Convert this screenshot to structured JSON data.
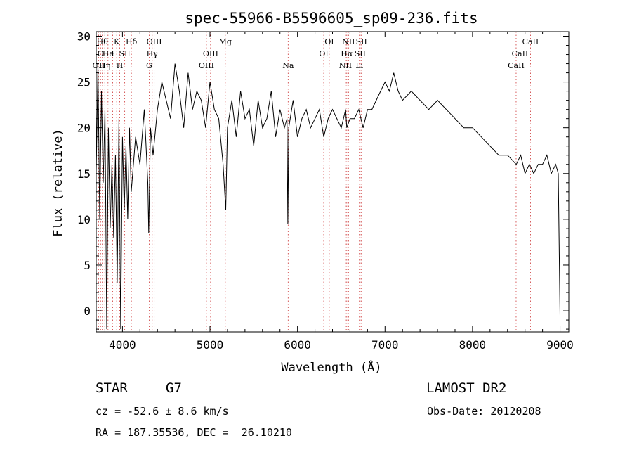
{
  "chart_data": {
    "type": "line",
    "title": "spec-55966-B5596605_sp09-236.fits",
    "xlabel": "Wavelength (Å)",
    "ylabel": "Flux (relative)",
    "xlim": [
      3700,
      9100
    ],
    "ylim": [
      -2.3,
      30.5
    ],
    "x_ticks": [
      4000,
      5000,
      6000,
      7000,
      8000,
      9000
    ],
    "y_ticks": [
      0,
      5,
      10,
      15,
      20,
      25,
      30
    ],
    "grid": false,
    "series": [
      {
        "x": [
          3700,
          3720,
          3740,
          3760,
          3780,
          3800,
          3820,
          3840,
          3860,
          3880,
          3900,
          3920,
          3940,
          3960,
          3980,
          4000,
          4020,
          4040,
          4060,
          4080,
          4100,
          4150,
          4200,
          4250,
          4290,
          4300,
          4320,
          4350,
          4400,
          4450,
          4500,
          4550,
          4600,
          4650,
          4700,
          4750,
          4800,
          4850,
          4900,
          4950,
          5000,
          5050,
          5100,
          5150,
          5180,
          5200,
          5250,
          5300,
          5350,
          5400,
          5450,
          5500,
          5550,
          5600,
          5650,
          5700,
          5750,
          5800,
          5850,
          5880,
          5890,
          5900,
          5950,
          6000,
          6050,
          6100,
          6150,
          6200,
          6250,
          6300,
          6350,
          6400,
          6450,
          6500,
          6550,
          6563,
          6600,
          6650,
          6700,
          6750,
          6800,
          6850,
          6900,
          6950,
          7000,
          7050,
          7100,
          7150,
          7200,
          7300,
          7400,
          7500,
          7600,
          7700,
          7800,
          7900,
          8000,
          8100,
          8200,
          8300,
          8400,
          8500,
          8550,
          8600,
          8650,
          8700,
          8750,
          8800,
          8850,
          8900,
          8950,
          8980,
          9000
        ],
        "y": [
          15,
          27,
          10,
          24,
          14,
          22,
          -2,
          20,
          9,
          16,
          8,
          17,
          3,
          21,
          -2,
          19,
          11,
          18,
          10,
          20,
          13,
          19,
          16,
          22,
          14,
          8.5,
          20,
          17,
          22,
          25,
          23,
          21,
          27,
          24,
          20,
          26,
          22,
          24,
          23,
          20,
          25,
          22,
          21,
          16,
          11,
          20,
          23,
          19,
          24,
          21,
          22,
          18,
          23,
          20,
          21,
          24,
          19,
          22,
          20,
          21,
          9.5,
          20,
          23,
          19,
          21,
          22,
          20,
          21,
          22,
          19,
          21,
          22,
          21,
          20,
          22,
          20,
          21,
          21,
          22,
          20,
          22,
          22,
          23,
          24,
          25,
          24,
          26,
          24,
          23,
          24,
          23,
          22,
          23,
          22,
          21,
          20,
          20,
          19,
          18,
          17,
          17,
          16,
          17,
          15,
          16,
          15,
          16,
          16,
          17,
          15,
          16,
          15,
          -0.5
        ]
      }
    ],
    "line_markers": [
      {
        "x": 3727,
        "label": "OII",
        "row": 3
      },
      {
        "x": 3750,
        "label": "O",
        "row": 2
      },
      {
        "x": 3770,
        "label": "Hθ",
        "row": 1
      },
      {
        "x": 3798,
        "label": "Hη",
        "row": 3
      },
      {
        "x": 3835,
        "label": "He",
        "row": 2
      },
      {
        "x": 3889,
        "label": "I",
        "row": 2
      },
      {
        "x": 3934,
        "label": "K",
        "row": 1
      },
      {
        "x": 3969,
        "label": "H",
        "row": 3
      },
      {
        "x": 4026,
        "label": "SII",
        "row": 2
      },
      {
        "x": 4102,
        "label": "Hδ",
        "row": 1
      },
      {
        "x": 4305,
        "label": "G",
        "row": 3
      },
      {
        "x": 4340,
        "label": "Hγ",
        "row": 2
      },
      {
        "x": 4363,
        "label": "OIII",
        "row": 1
      },
      {
        "x": 4959,
        "label": "OIII",
        "row": 3
      },
      {
        "x": 5007,
        "label": "OIII",
        "row": 2
      },
      {
        "x": 5175,
        "label": "Mg",
        "row": 1
      },
      {
        "x": 5893,
        "label": "Na",
        "row": 3
      },
      {
        "x": 6300,
        "label": "OI",
        "row": 2
      },
      {
        "x": 6363,
        "label": "OI",
        "row": 1
      },
      {
        "x": 6548,
        "label": "NII",
        "row": 3
      },
      {
        "x": 6563,
        "label": "Hα",
        "row": 2
      },
      {
        "x": 6583,
        "label": "NII",
        "row": 1
      },
      {
        "x": 6707,
        "label": "Li",
        "row": 3
      },
      {
        "x": 6716,
        "label": "SII",
        "row": 2
      },
      {
        "x": 6731,
        "label": "SII",
        "row": 1
      },
      {
        "x": 8498,
        "label": "CaII",
        "row": 3
      },
      {
        "x": 8542,
        "label": "CaII",
        "row": 2
      },
      {
        "x": 8662,
        "label": "CaII",
        "row": 1
      }
    ]
  },
  "info": {
    "class_label": "STAR",
    "subclass": "G7",
    "survey": "LAMOST DR2",
    "cz": "cz = -52.6 ± 8.6 km/s",
    "obs_date": "Obs-Date: 20120208",
    "coords": "RA = 187.35536, DEC =  26.10210"
  },
  "colors": {
    "axis": "#000000",
    "spectrum": "#000000",
    "marker": "#cc3333"
  }
}
